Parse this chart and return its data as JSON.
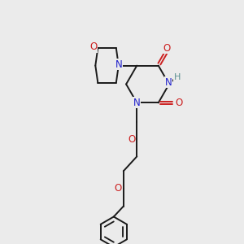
{
  "bg_color": "#ebebeb",
  "bond_color": "#1a1a1a",
  "N_color": "#2020cc",
  "O_color": "#cc2020",
  "H_color": "#5a9090",
  "figsize": [
    3.0,
    3.0
  ],
  "dpi": 100,
  "xlim": [
    0,
    10
  ],
  "ylim": [
    0,
    10
  ],
  "lw": 1.4,
  "fs": 8.5
}
